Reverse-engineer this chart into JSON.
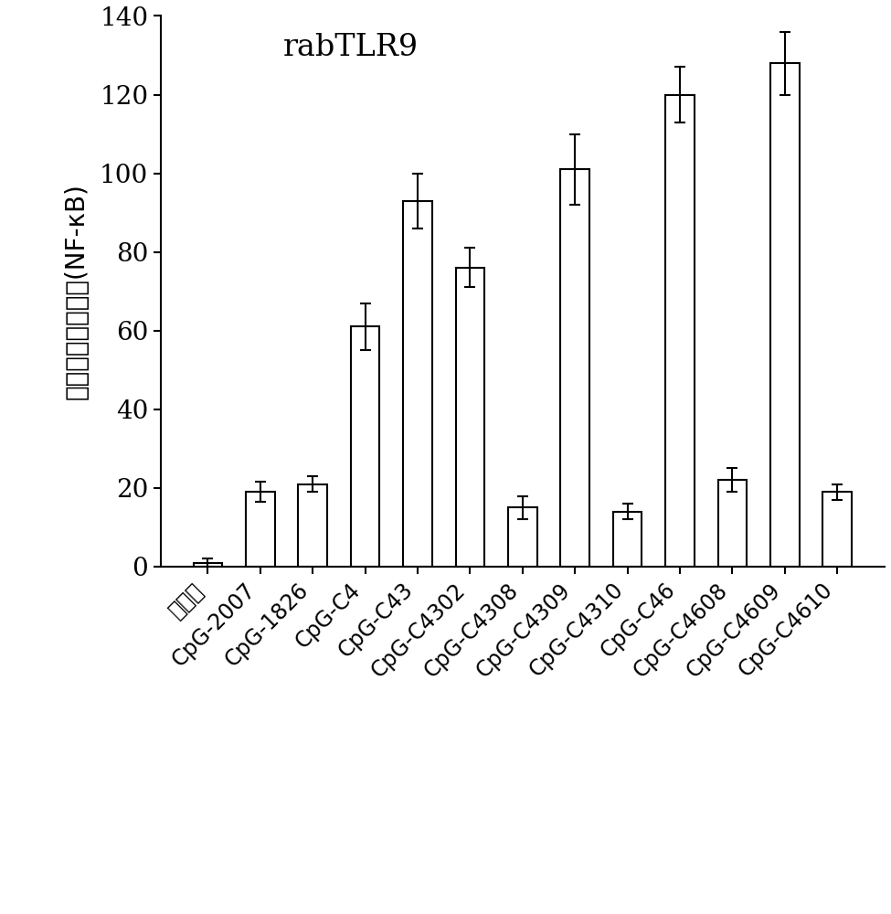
{
  "categories": [
    "控制组",
    "CpG-2007",
    "CpG-1826",
    "CpG-C4",
    "CpG-C43",
    "CpG-C4302",
    "CpG-C4308",
    "CpG-C4309",
    "CpG-C4310",
    "CpG-C46",
    "CpG-C4608",
    "CpG-C4609",
    "CpG-C4610"
  ],
  "values": [
    1,
    19,
    21,
    61,
    93,
    76,
    15,
    101,
    14,
    120,
    22,
    128,
    19
  ],
  "errors": [
    1,
    2.5,
    2,
    6,
    7,
    5,
    3,
    9,
    2,
    7,
    3,
    8,
    2
  ],
  "bar_color": "#ffffff",
  "bar_edgecolor": "#000000",
  "title": "rabTLR9",
  "ylabel": "相对荧光素酶活性(NF-κB)",
  "ylim": [
    0,
    140
  ],
  "yticks": [
    0,
    20,
    40,
    60,
    80,
    100,
    120,
    140
  ],
  "title_fontsize": 24,
  "ylabel_fontsize": 20,
  "tick_fontsize": 20,
  "xlabel_fontsize": 17,
  "background_color": "#ffffff",
  "bar_width": 0.55,
  "capsize": 4,
  "linewidth": 1.5
}
